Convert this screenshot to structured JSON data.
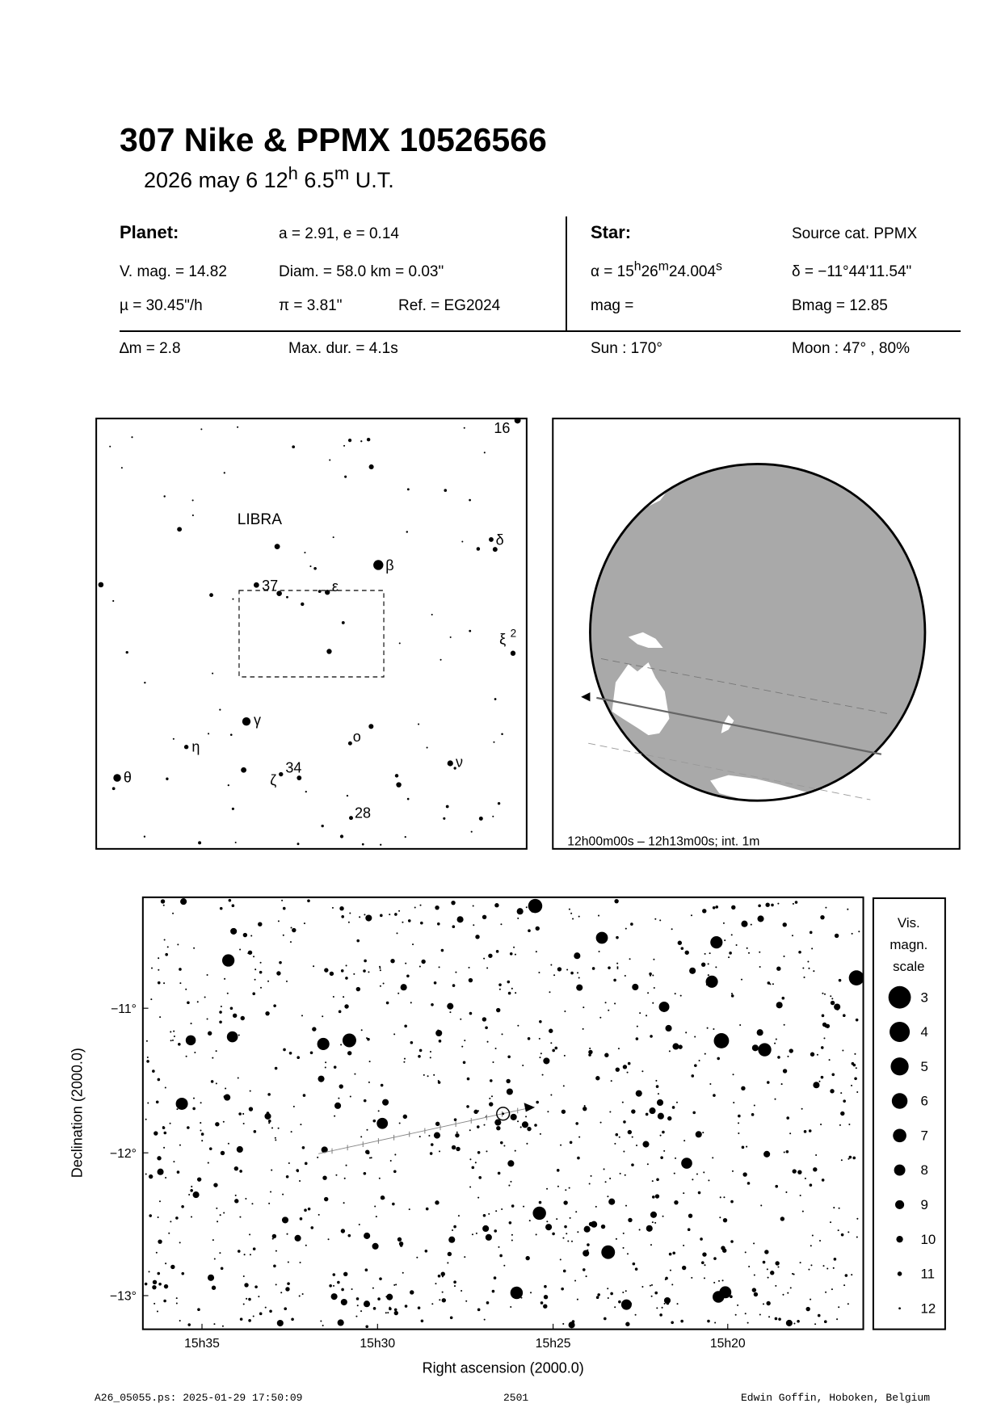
{
  "header": {
    "title": "307 Nike  &  PPMX 10526566",
    "date": "2026 may  6  12",
    "hour_sup": "h",
    "minutes": " 6.5",
    "min_sup": "m",
    "ut": " U.T."
  },
  "planet": {
    "heading": "Planet:",
    "orbit": "a = 2.91, e = 0.14",
    "vmag": "V. mag. = 14.82",
    "diam": "Diam. = 58.0 km = 0.03\"",
    "motion": "µ =  30.45\"/h",
    "parallax": "π =  3.81\"",
    "ref": "Ref. = EG2024"
  },
  "star": {
    "heading": "Star:",
    "source": "Source cat.  PPMX",
    "ra_prefix": "α = 15",
    "ra_h": "h",
    "ra_mid": "26",
    "ra_m": "m",
    "ra_sec": "24.004",
    "ra_s": "s",
    "dec": "δ = −11°44'11.54\"",
    "mag": " mag =",
    "bmag": "Bmag = 12.85"
  },
  "event": {
    "dmag": "∆m = 2.8",
    "maxdur": "Max. dur. = 4.1s",
    "sun": "Sun : 170°",
    "moon": "Moon :  47° , 80%"
  },
  "finder": {
    "constellation": "LIBRA",
    "labels": {
      "s16": "16",
      "delta": "δ",
      "beta": "β",
      "s37": "37",
      "epsilon": "ε",
      "xi2": "ξ",
      "xi2_sup": "2",
      "gamma": "γ",
      "eta": "η",
      "omicron": "ο",
      "nu": "ν",
      "theta": "θ",
      "zeta": "ζ",
      "s34": "34",
      "s28": "28"
    }
  },
  "globe": {
    "caption": "12h00m00s – 12h13m00s; int.  1m",
    "land_color": "#a9a9a9"
  },
  "starmap": {
    "xlabel": "Right ascension (2000.0)",
    "ylabel": "Declination (2000.0)",
    "xticks": [
      "15h35",
      "15h30",
      "15h25",
      "15h20"
    ],
    "yticks": [
      "−11°",
      "−12°",
      "−13°"
    ],
    "legend": {
      "title1": "Vis.",
      "title2": "magn.",
      "title3": "scale",
      "mags": [
        "3",
        "4",
        "5",
        "6",
        "7",
        "8",
        "9",
        "10",
        "11",
        "12"
      ]
    }
  },
  "footer": {
    "file": "A26_05055.ps: 2025-01-29 17:50:09",
    "number": "2501",
    "author": "Edwin Goffin, Hoboken, Belgium"
  }
}
